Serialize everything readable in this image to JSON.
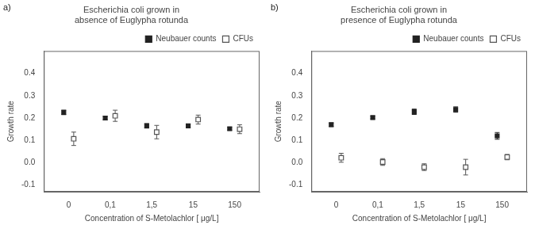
{
  "chart_data": [
    {
      "type": "scatter",
      "title": [
        "Escherichia coli grown in",
        "absence of Euglypha rotunda"
      ],
      "annotations": [
        "a)"
      ],
      "xlabel": "Concentration of S-Metolachlor [ μg/L]",
      "ylabel": "Growth rate",
      "categories": [
        "0",
        "0,1",
        "1,5",
        "15",
        "150"
      ],
      "series": [
        {
          "name": "Neubauer counts",
          "color": "#222222",
          "marker": "square",
          "values": [
            0.225,
            0.2,
            0.165,
            0.165,
            0.152
          ],
          "errors": [
            0.01,
            0.008,
            0.01,
            0.008,
            0.006
          ]
        },
        {
          "name": "CFUs",
          "color": "#555555",
          "marker": "square_open",
          "values": [
            0.107,
            0.21,
            0.137,
            0.193,
            0.15
          ],
          "errors": [
            0.03,
            0.025,
            0.03,
            0.02,
            0.02
          ]
        }
      ],
      "ylim": [
        -0.13,
        0.5
      ],
      "yticks": [
        -0.1,
        {
          "value": 0.0,
          "label": "0.0"
        },
        0.1,
        0.2,
        0.3,
        0.4
      ],
      "grid": false,
      "legend": "upper right"
    },
    {
      "type": "scatter",
      "title": [
        "Escherichia coli grown in",
        "presence of Euglypha rotunda"
      ],
      "annotations": [
        "b)"
      ],
      "xlabel": "Concentration of S-Metolachlor [ μg/L]",
      "ylabel": "Growth rate",
      "categories": [
        "0",
        "0,1",
        "1,5",
        "15",
        "150"
      ],
      "series": [
        {
          "name": "Neubauer counts",
          "color": "#222222",
          "marker": "square",
          "values": [
            0.17,
            0.202,
            0.228,
            0.238,
            0.12
          ],
          "errors": [
            0.008,
            0.006,
            0.012,
            0.012,
            0.015
          ]
        },
        {
          "name": "CFUs",
          "color": "#555555",
          "marker": "square_open",
          "values": [
            0.022,
            0.003,
            -0.02,
            -0.02,
            0.025
          ],
          "errors": [
            0.02,
            0.015,
            0.015,
            0.035,
            0.012
          ]
        }
      ],
      "ylim": [
        -0.13,
        0.5
      ],
      "yticks": [
        -0.1,
        {
          "value": 0.0,
          "label": "0.0"
        },
        0.1,
        0.2,
        0.3,
        0.4
      ],
      "grid": false,
      "legend": "upper right"
    }
  ]
}
